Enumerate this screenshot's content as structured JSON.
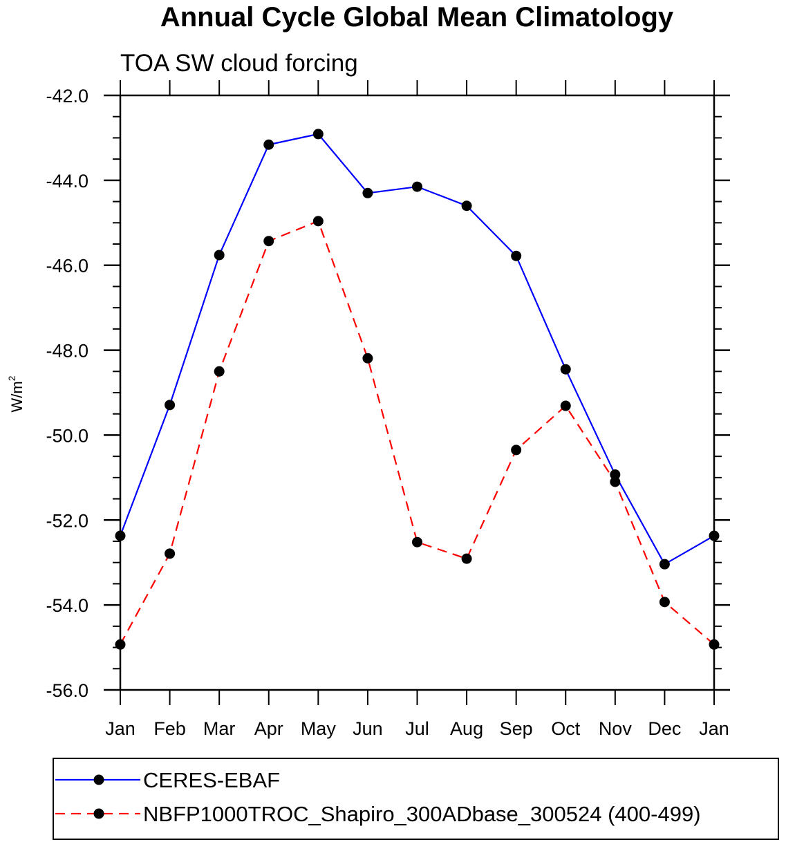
{
  "chart_data": {
    "type": "line",
    "title": "Annual Cycle Global Mean Climatology",
    "subtitle": "TOA SW cloud forcing",
    "xlabel": "",
    "ylabel": "W/m",
    "ylabel_superscript": "2",
    "categories": [
      "Jan",
      "Feb",
      "Mar",
      "Apr",
      "May",
      "Jun",
      "Jul",
      "Aug",
      "Sep",
      "Oct",
      "Nov",
      "Dec",
      "Jan"
    ],
    "ylim": [
      -56.0,
      -42.0
    ],
    "yticks": [
      -42.0,
      -44.0,
      -46.0,
      -48.0,
      -50.0,
      -52.0,
      -54.0,
      -56.0
    ],
    "ytick_labels": [
      "-42.0",
      "-44.0",
      "-46.0",
      "-48.0",
      "-50.0",
      "-52.0",
      "-54.0",
      "-56.0"
    ],
    "yminor_step": 0.5,
    "grid": false,
    "legend_position": "bottom",
    "series": [
      {
        "name": "CERES-EBAF",
        "color": "#0000ff",
        "dash": "solid",
        "marker": "filled-circle",
        "values": [
          -52.37,
          -49.29,
          -45.76,
          -43.16,
          -42.91,
          -44.3,
          -44.15,
          -44.6,
          -45.78,
          -48.45,
          -50.93,
          -53.04,
          -52.37
        ]
      },
      {
        "name": "NBFP1000TROC_Shapiro_300ADbase_300524 (400-499)",
        "color": "#ff0000",
        "dash": "dashed",
        "marker": "filled-circle",
        "values": [
          -54.93,
          -52.79,
          -48.5,
          -45.43,
          -44.96,
          -48.19,
          -52.52,
          -52.91,
          -50.35,
          -49.31,
          -51.1,
          -53.93,
          -54.93
        ]
      }
    ]
  }
}
